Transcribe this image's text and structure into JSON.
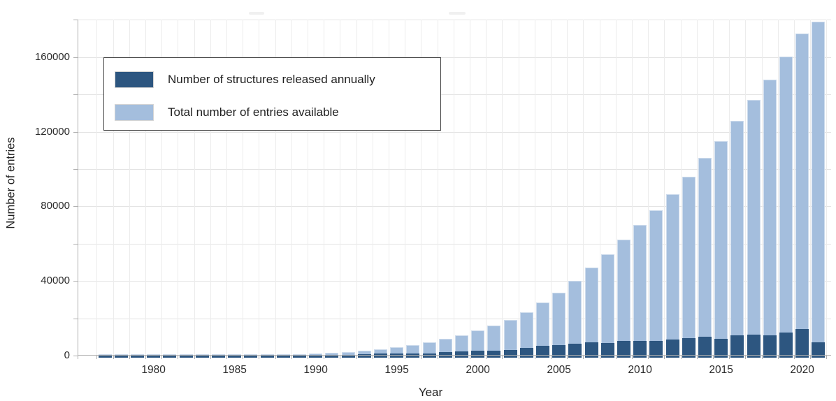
{
  "chart_data": {
    "type": "bar",
    "subtype": "overlay",
    "title": "",
    "xlabel": "Year",
    "ylabel": "Number of entries",
    "years": [
      1977,
      1978,
      1979,
      1980,
      1981,
      1982,
      1983,
      1984,
      1985,
      1986,
      1987,
      1988,
      1989,
      1990,
      1991,
      1992,
      1993,
      1994,
      1995,
      1996,
      1997,
      1998,
      1999,
      2000,
      2001,
      2002,
      2003,
      2004,
      2005,
      2006,
      2007,
      2008,
      2009,
      2010,
      2011,
      2012,
      2013,
      2014,
      2015,
      2016,
      2017,
      2018,
      2019,
      2020,
      2021
    ],
    "series": [
      {
        "name": "Number of structures released annually",
        "color": "#2d5680",
        "values": [
          69,
          32,
          32,
          26,
          39,
          54,
          59,
          65,
          59,
          72,
          98,
          134,
          169,
          213,
          325,
          417,
          670,
          951,
          1039,
          1250,
          1261,
          1813,
          2124,
          2612,
          2532,
          2859,
          4087,
          5233,
          5570,
          6297,
          7210,
          6893,
          7720,
          8034,
          7850,
          8780,
          9194,
          10024,
          9072,
          10961,
          11215,
          10695,
          12479,
          14058,
          7100
        ]
      },
      {
        "name": "Total number of entries available",
        "color": "#a4bedd",
        "values": [
          77,
          109,
          141,
          167,
          206,
          260,
          319,
          384,
          443,
          515,
          613,
          747,
          916,
          1129,
          1454,
          1871,
          2541,
          3492,
          4531,
          5781,
          7042,
          8855,
          10979,
          13591,
          16123,
          18982,
          23069,
          28302,
          33872,
          40169,
          47379,
          54272,
          61992,
          70026,
          77876,
          86656,
          95850,
          105874,
          114946,
          125907,
          137122,
          147817,
          160296,
          172817,
          179000
        ]
      }
    ],
    "x_tick_labels": [
      "1980",
      "1985",
      "1990",
      "1995",
      "2000",
      "2005",
      "2010",
      "2015",
      "2020"
    ],
    "x_tick_values": [
      1980,
      1985,
      1990,
      1995,
      2000,
      2005,
      2010,
      2015,
      2020
    ],
    "y_tick_labels": [
      "0",
      "40000",
      "80000",
      "120000",
      "160000"
    ],
    "y_tick_values": [
      0,
      40000,
      80000,
      120000,
      160000
    ],
    "y_minor_tick_step": 20000,
    "ylim": [
      0,
      180150
    ],
    "grid": true,
    "legend_position": "upper-left",
    "colors": {
      "annual_bar": "#2d5680",
      "total_bar": "#a4bedd",
      "gridline": "#e3e3e3",
      "axis": "#b0b0b0",
      "text": "#1f1f1f",
      "background": "#ffffff"
    }
  },
  "legend": {
    "items": [
      {
        "label": "Number of structures released annually",
        "swatch": "dark-blue"
      },
      {
        "label": "Total number of entries available",
        "swatch": "light-blue"
      }
    ]
  }
}
